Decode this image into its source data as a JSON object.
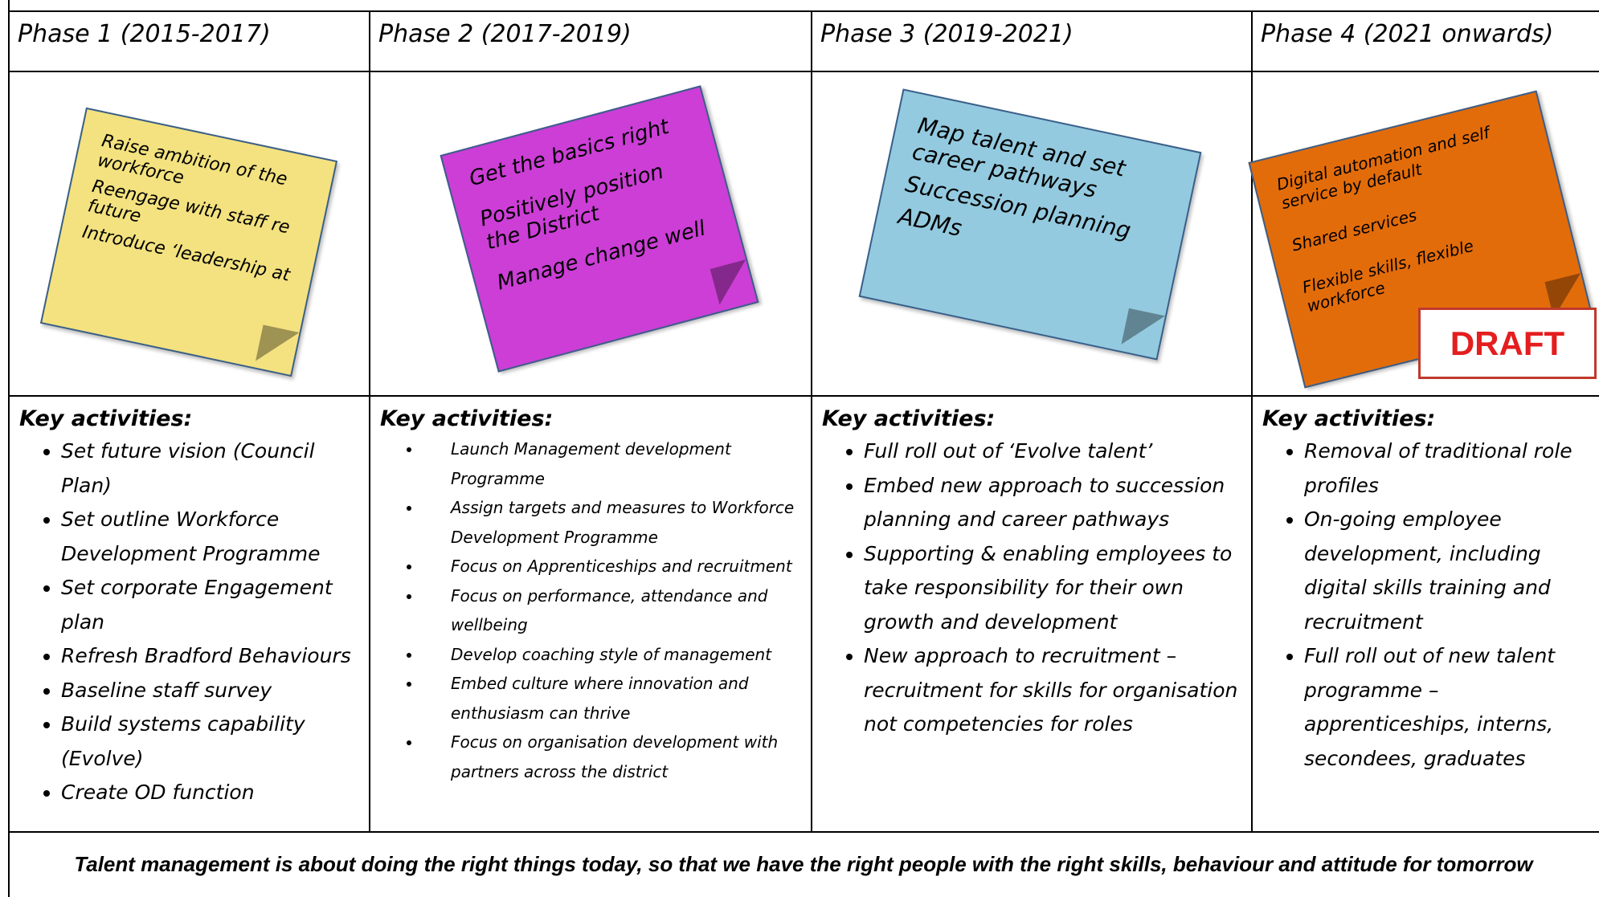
{
  "phases": [
    {
      "title": "Phase 1 (2015-2017)",
      "note": [
        "Raise ambition of the workforce",
        "Reengage with staff re future",
        "Introduce ‘leadership at"
      ],
      "activities_heading": "Key activities:",
      "activities": [
        "Set future vision (Council Plan)",
        "Set outline Workforce Development Programme",
        "Set corporate Engagement plan",
        "Refresh Bradford Behaviours",
        "Baseline staff survey",
        "Build  systems capability (Evolve)",
        "Create OD function"
      ]
    },
    {
      "title": "Phase 2 (2017-2019)",
      "note": [
        "Get the basics right",
        "Positively position the District",
        "Manage change well"
      ],
      "activities_heading": "Key activities:",
      "activities": [
        "Launch Management development Programme",
        "Assign targets and measures to Workforce Development Programme",
        "Focus on Apprenticeships and recruitment",
        "Focus on performance, attendance and wellbeing",
        "Develop coaching style of management",
        "Embed culture where innovation and enthusiasm can thrive",
        "Focus on organisation development with partners across the district"
      ]
    },
    {
      "title": "Phase 3 (2019-2021)",
      "note": [
        "Map talent and set career pathways",
        "Succession planning",
        "ADMs"
      ],
      "activities_heading": "Key activities:",
      "activities": [
        "Full roll out of ‘Evolve talent’",
        "Embed new approach to succession planning and career pathways",
        "Supporting & enabling employees to take responsibility for their own growth and development",
        "New approach to recruitment – recruitment for skills for organisation not competencies for roles"
      ]
    },
    {
      "title": "Phase 4 (2021 onwards)",
      "note": [
        "Digital automation and self service by default",
        "Shared services",
        "Flexible skills, flexible workforce"
      ],
      "activities_heading": "Key activities:",
      "activities": [
        "Removal of traditional role profiles",
        "On-going employee development, including digital skills training and recruitment",
        "Full roll out of new talent programme – apprenticeships, interns, secondees, graduates"
      ]
    }
  ],
  "draft_label": "DRAFT",
  "footer": "Talent management is about doing the right things today, so that we have the right people with the right skills, behaviour and attitude for tomorrow"
}
